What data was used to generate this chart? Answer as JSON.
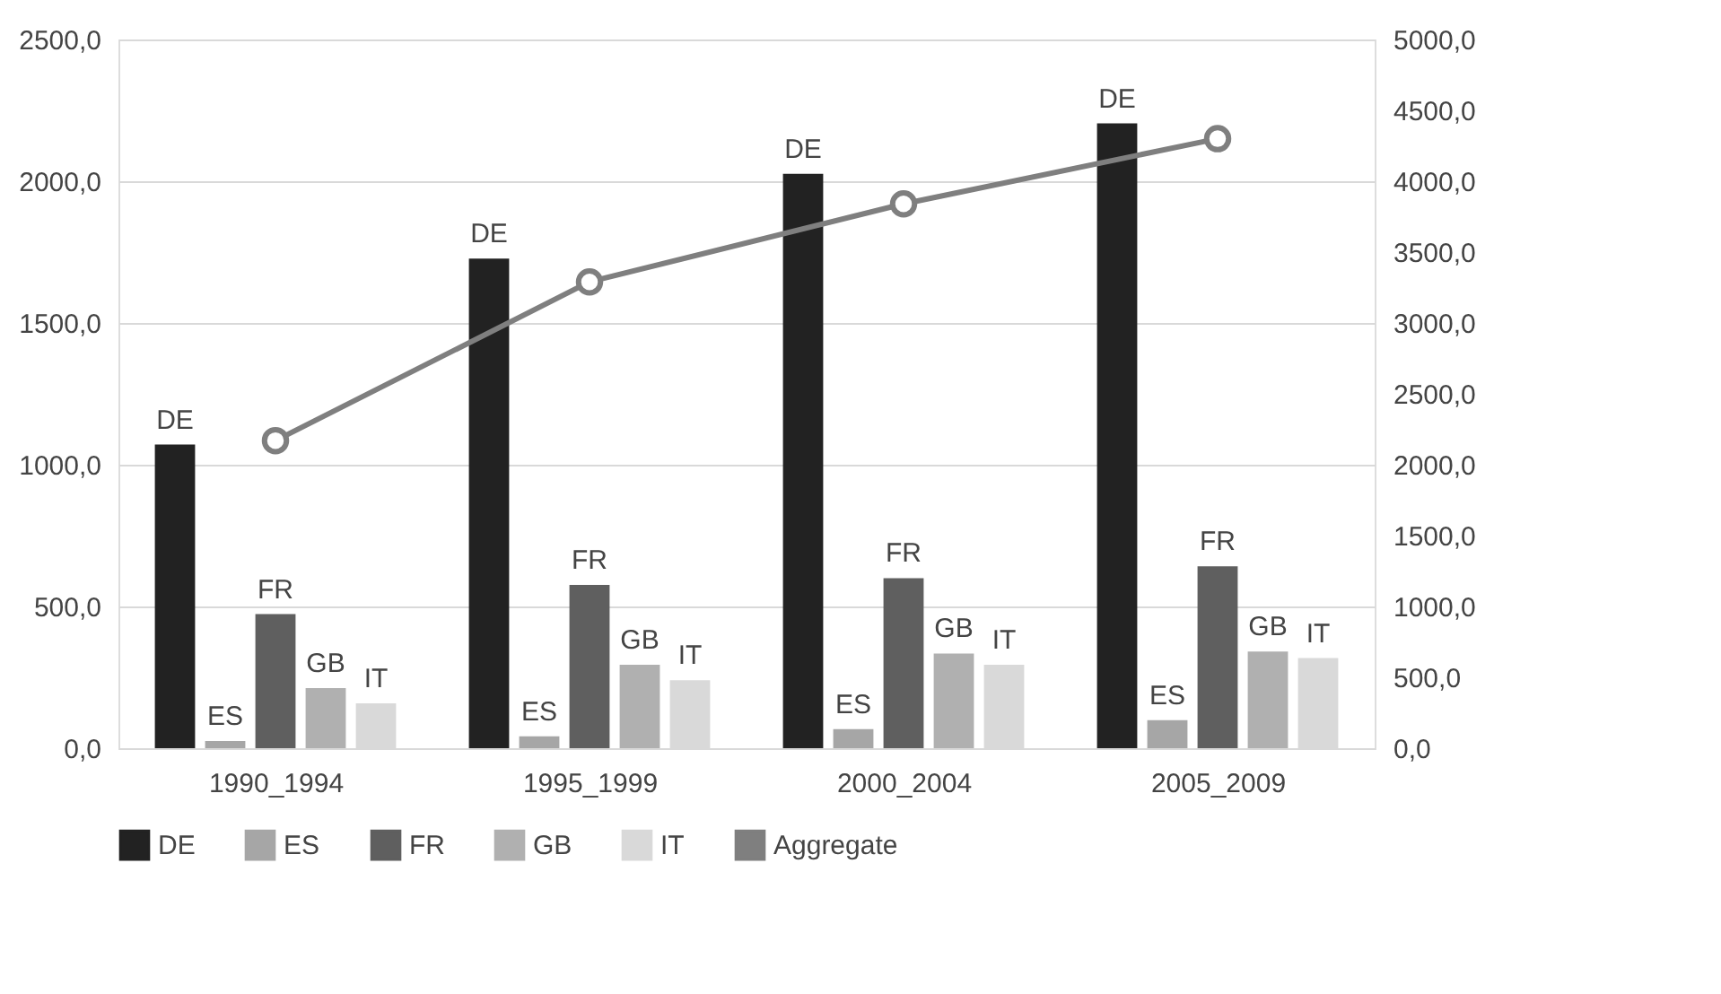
{
  "chart_data": {
    "type": "bar",
    "categories": [
      "1990_1994",
      "1995_1999",
      "2000_2004",
      "2005_2009"
    ],
    "series": [
      {
        "name": "DE",
        "color": "#222222",
        "values": [
          1071,
          1727,
          2026,
          2204
        ]
      },
      {
        "name": "ES",
        "color": "#a6a6a6",
        "values": [
          25,
          42,
          67,
          99
        ]
      },
      {
        "name": "FR",
        "color": "#5f5f5f",
        "values": [
          473,
          576,
          600,
          642
        ]
      },
      {
        "name": "GB",
        "color": "#b0b0b0",
        "values": [
          212,
          294,
          334,
          341
        ]
      },
      {
        "name": "IT",
        "color": "#d9d9d9",
        "values": [
          158,
          240,
          294,
          318
        ]
      },
      {
        "name": "Aggregate",
        "color": "#7f7f7f",
        "type": "line",
        "axis": "y2",
        "values": [
          2170,
          3290,
          3840,
          4300
        ]
      }
    ],
    "ylim": [
      0,
      2500
    ],
    "yticks": [
      {
        "value": 0,
        "label": "0,0"
      },
      {
        "value": 500,
        "label": "500,0"
      },
      {
        "value": 1000,
        "label": "1000,0"
      },
      {
        "value": 1500,
        "label": "1500,0"
      },
      {
        "value": 2000,
        "label": "2000,0"
      },
      {
        "value": 2500,
        "label": "2500,0"
      }
    ],
    "y2lim": [
      0,
      5000
    ],
    "y2ticks": [
      {
        "value": 0,
        "label": "0,0"
      },
      {
        "value": 500,
        "label": "500,0"
      },
      {
        "value": 1000,
        "label": "1000,0"
      },
      {
        "value": 1500,
        "label": "1500,0"
      },
      {
        "value": 2000,
        "label": "2000,0"
      },
      {
        "value": 2500,
        "label": "2500,0"
      },
      {
        "value": 3000,
        "label": "3000,0"
      },
      {
        "value": 3500,
        "label": "3500,0"
      },
      {
        "value": 4000,
        "label": "4000,0"
      },
      {
        "value": 4500,
        "label": "4500,0"
      },
      {
        "value": 5000,
        "label": "5000,0"
      }
    ],
    "grid": "y",
    "legend": "bottom",
    "marker": "circle",
    "line_style": "solid"
  }
}
